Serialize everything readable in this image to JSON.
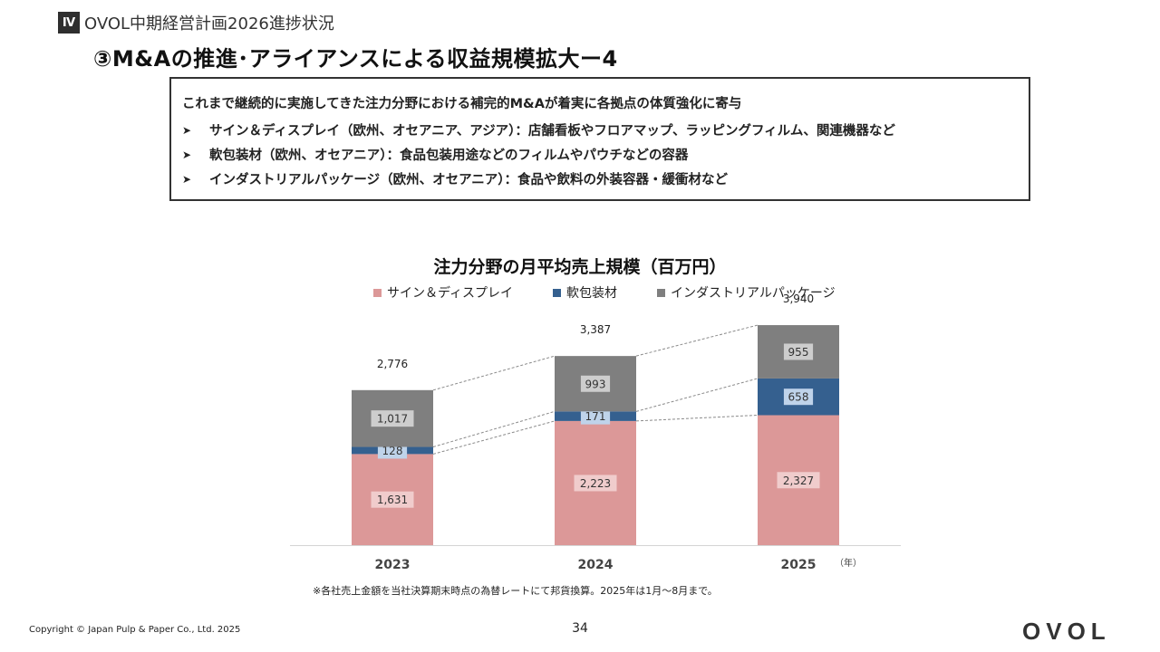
{
  "header": {
    "section_badge": "Ⅳ",
    "section_title": "OVOL中期経営計画2026進捗状況",
    "page_title": "③M&Aの推進･アライアンスによる収益規模拡大ー4"
  },
  "info_box": {
    "intro": "これまで継続的に実施してきた注力分野における補完的M&Aが着実に各拠点の体質強化に寄与",
    "bullet_icon": "arrowhead-icon",
    "bullets": [
      "サイン＆ディスプレイ（欧州、オセアニア、アジア）：店舗看板やフロアマップ、ラッピングフィルム、関連機器など",
      "軟包装材（欧州、オセアニア）：食品包装用途などのフィルムやパウチなどの容器",
      "インダストリアルパッケージ（欧州、オセアニア）：食品や飲料の外装容器・緩衝材など"
    ]
  },
  "chart_data": {
    "type": "bar",
    "stacked": true,
    "title": "注力分野の月平均売上規模（百万円）",
    "categories": [
      "2023",
      "2024",
      "2025"
    ],
    "x_unit_label": "（年）",
    "series": [
      {
        "name": "サイン＆ディスプレイ",
        "color": "#dc9898",
        "label_bg": "#f0cccc",
        "values": [
          1631,
          2223,
          2327
        ],
        "labels": [
          "1,631",
          "2,223",
          "2,327"
        ]
      },
      {
        "name": "軟包装材",
        "color": "#35608f",
        "label_bg": "#bfd3ea",
        "values": [
          128,
          171,
          658
        ],
        "labels": [
          "128",
          "171",
          "658"
        ]
      },
      {
        "name": "インダストリアルパッケージ",
        "color": "#7f7f7f",
        "label_bg": "#cdcdcd",
        "values": [
          1017,
          993,
          955
        ],
        "labels": [
          "1,017",
          "993",
          "955"
        ]
      }
    ],
    "totals": [
      2776,
      3387,
      3940
    ],
    "total_labels": [
      "2,776",
      "3,387",
      "3,940"
    ],
    "ylim": [
      0,
      4200
    ],
    "connector_lines": "dashed",
    "gridlines": false,
    "legend_position": "top"
  },
  "footer": {
    "note": "※各社売上金額を当社決算期末時点の為替レートにて邦貨換算。2025年は1月～8月まで。",
    "copyright": "Copyright © Japan Pulp & Paper Co., Ltd. 2025",
    "page_number": "34",
    "logo_text": "OVOL"
  }
}
